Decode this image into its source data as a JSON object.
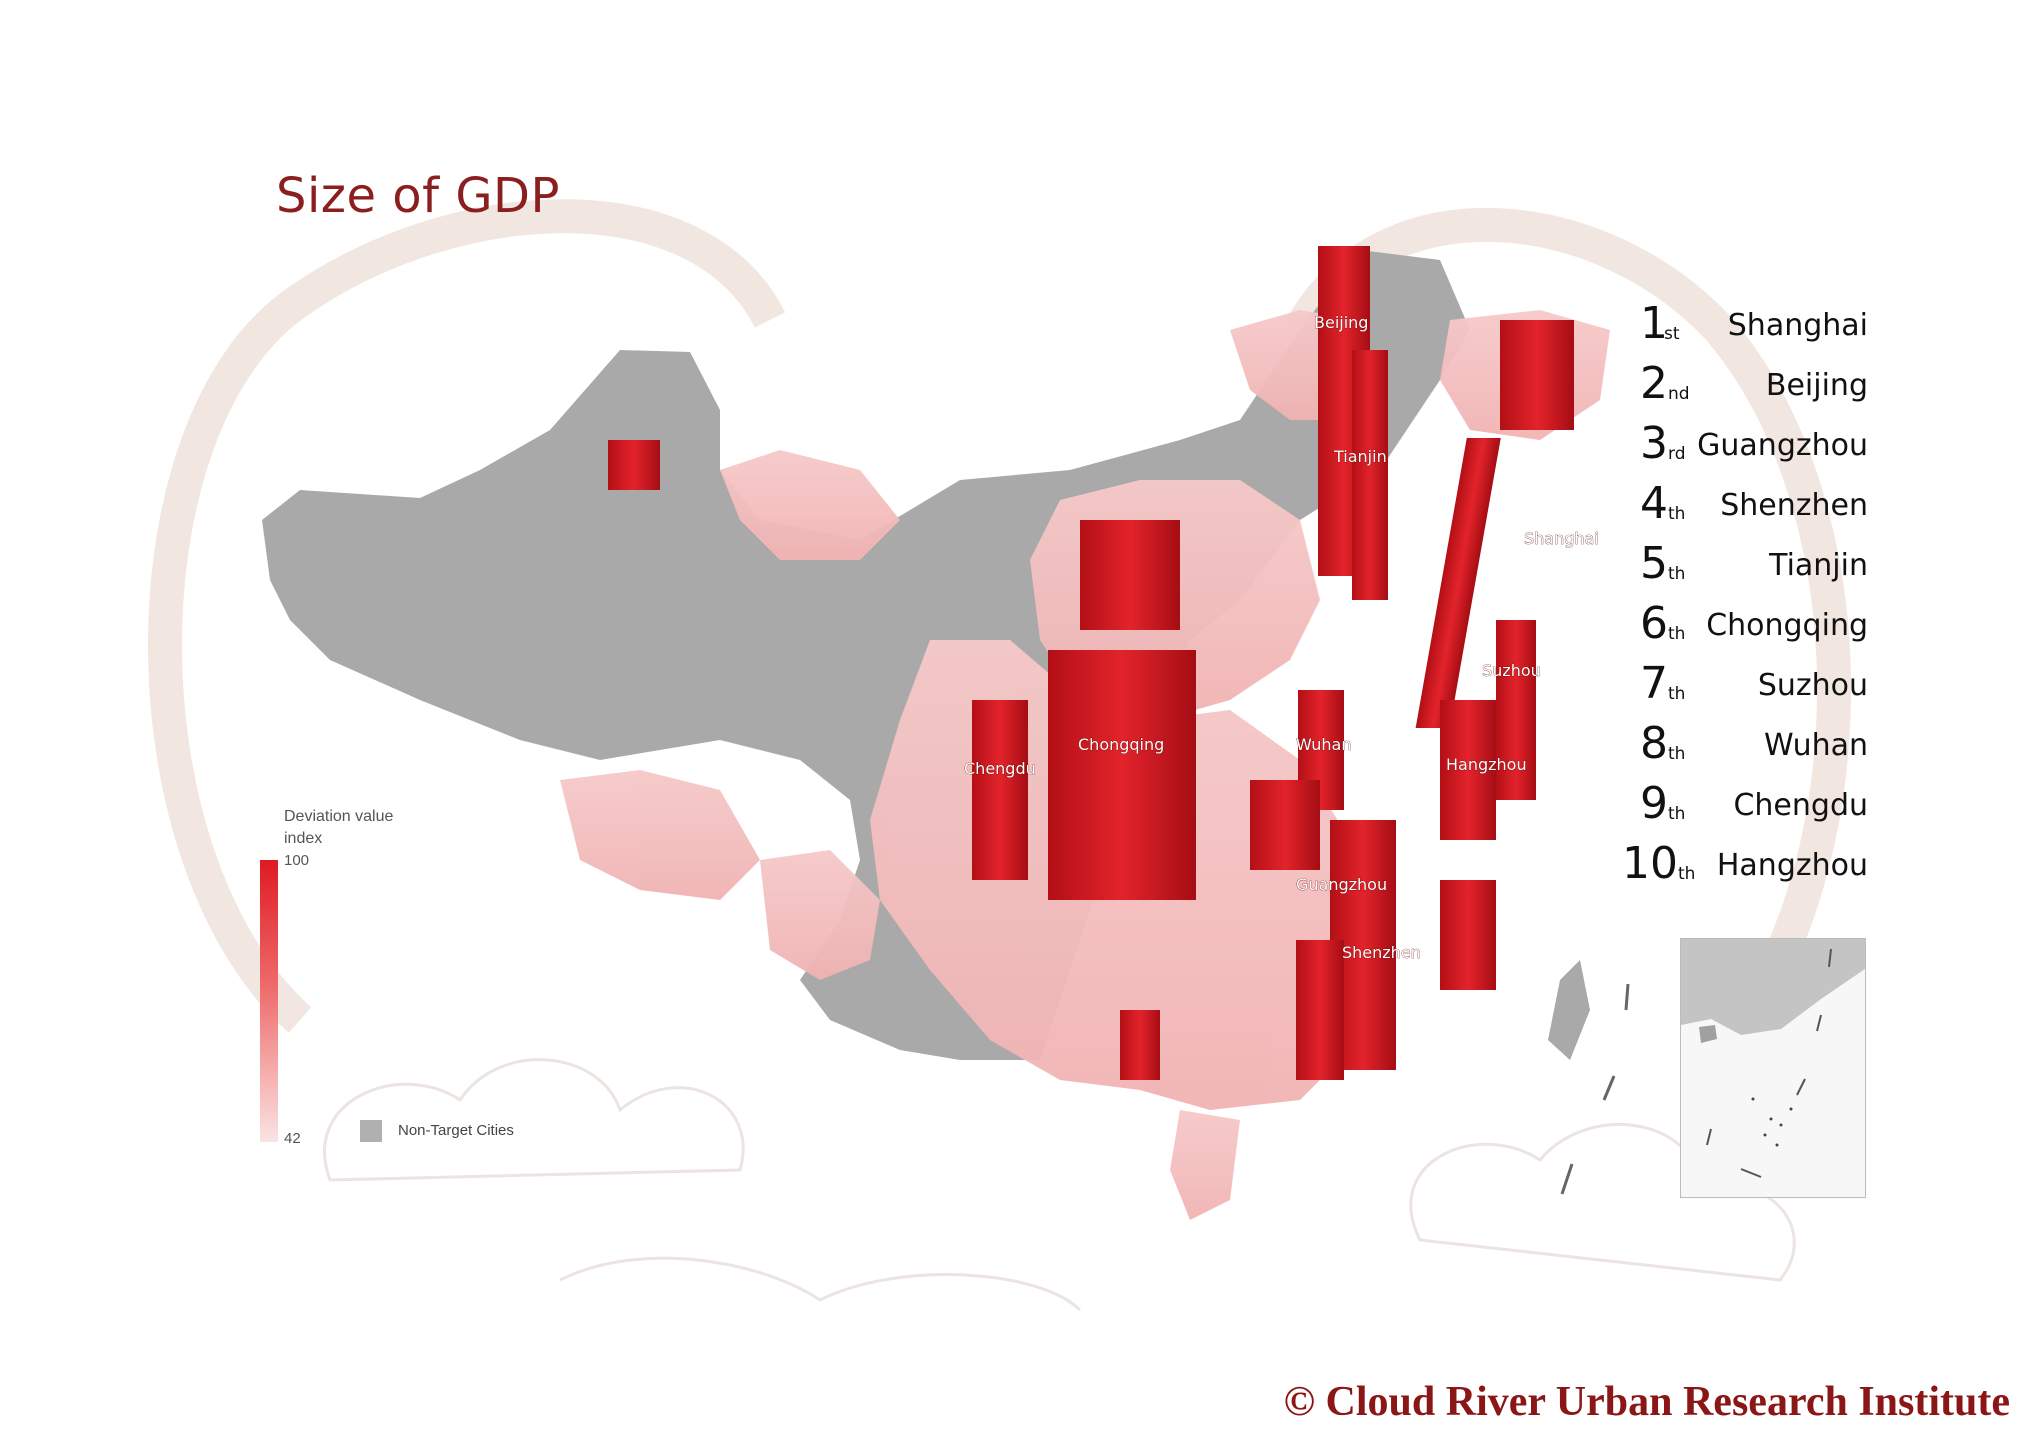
{
  "title": "Size of GDP",
  "ranking": [
    {
      "num": "1",
      "suffix": "st",
      "city": "Shanghai"
    },
    {
      "num": "2",
      "suffix": "nd",
      "city": "Beijing"
    },
    {
      "num": "3",
      "suffix": "rd",
      "city": "Guangzhou"
    },
    {
      "num": "4",
      "suffix": "th",
      "city": "Shenzhen"
    },
    {
      "num": "5",
      "suffix": "th",
      "city": "Tianjin"
    },
    {
      "num": "6",
      "suffix": "th",
      "city": "Chongqing"
    },
    {
      "num": "7",
      "suffix": "th",
      "city": "Suzhou"
    },
    {
      "num": "8",
      "suffix": "th",
      "city": "Wuhan"
    },
    {
      "num": "9",
      "suffix": "th",
      "city": "Chengdu"
    },
    {
      "num": "10",
      "suffix": "th",
      "city": "Hangzhou"
    }
  ],
  "legend": {
    "title": "Deviation value index",
    "max": "100",
    "min": "42",
    "non_target_label": "Non-Target Cities",
    "colors": {
      "high": "#e01a23",
      "low": "#fbe3e3",
      "non_target": "#b0b0b0"
    }
  },
  "map_labels": [
    "Beijing",
    "Tianjin",
    "Shanghai",
    "Suzhou",
    "Hangzhou",
    "Wuhan",
    "Chongqing",
    "Chengdu",
    "Guangzhou",
    "Shenzhen"
  ],
  "copyright": "© Cloud River Urban Research Institute"
}
